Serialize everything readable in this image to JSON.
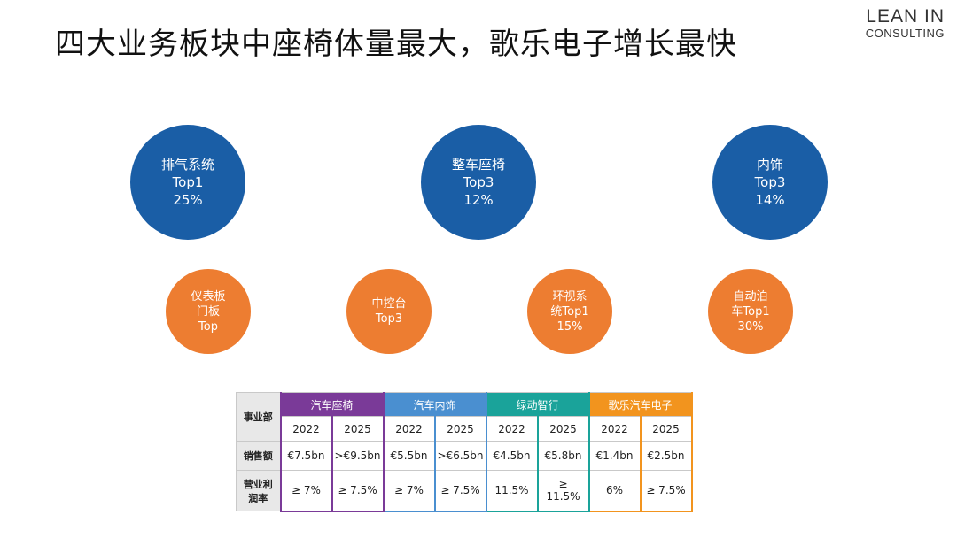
{
  "title": "四大业务板块中座椅体量最大，歌乐电子增长最快",
  "logo": {
    "line1": "LEAN IN",
    "line2": "CONSULTING"
  },
  "big_circles": [
    {
      "line1": "排气系统",
      "line2": "Top1",
      "line3": "25%"
    },
    {
      "line1": "整车座椅",
      "line2": "Top3",
      "line3": "12%"
    },
    {
      "line1": "内饰",
      "line2": "Top3",
      "line3": "14%"
    }
  ],
  "small_circles": [
    {
      "line1": "仪表板",
      "line2": "门板",
      "line3": "Top"
    },
    {
      "line1": "中控台",
      "line2": "Top3",
      "line3": ""
    },
    {
      "line1": "环视系",
      "line2": "统Top1",
      "line3": "15%"
    },
    {
      "line1": "自动泊",
      "line2": "车Top1",
      "line3": "30%"
    }
  ],
  "table": {
    "row_head_division": "事业部",
    "row_head_sales": "销售额",
    "row_head_margin_1": "营业利",
    "row_head_margin_2": "润率",
    "divisions": [
      {
        "name": "汽车座椅",
        "color": "#7a3a98"
      },
      {
        "name": "汽车内饰",
        "color": "#4a8fd0"
      },
      {
        "name": "绿动智行",
        "color": "#1aa39a"
      },
      {
        "name": "歌乐汽车电子",
        "color": "#f2941e"
      }
    ],
    "years": [
      "2022",
      "2025",
      "2022",
      "2025",
      "2022",
      "2025",
      "2022",
      "2025"
    ],
    "sales": [
      "€7.5bn",
      ">€9.5bn",
      "€5.5bn",
      ">€6.5bn",
      "€4.5bn",
      "€5.8bn",
      "€1.4bn",
      "€2.5bn"
    ],
    "margin": [
      "≥ 7%",
      "≥ 7.5%",
      "≥ 7%",
      "≥ 7.5%",
      "11.5%",
      "≥\n11.5%",
      "6%",
      "≥ 7.5%"
    ]
  }
}
